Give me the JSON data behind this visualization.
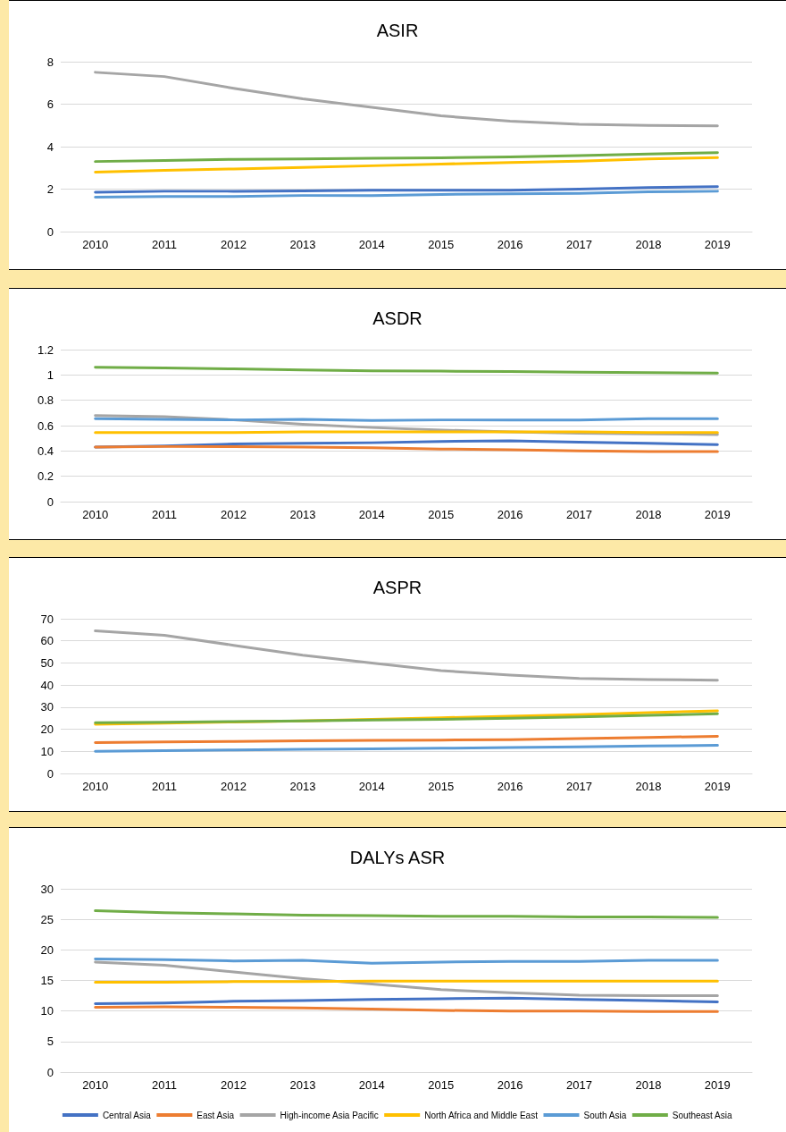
{
  "chart_data": [
    {
      "type": "line",
      "title": "ASIR",
      "categories": [
        "2010",
        "2011",
        "2012",
        "2013",
        "2014",
        "2015",
        "2016",
        "2017",
        "2018",
        "2019"
      ],
      "ylim": [
        0,
        8
      ],
      "yticks": [
        0,
        2,
        4,
        6,
        8
      ],
      "grid": "y",
      "legend": false,
      "marker": "none",
      "line_style": "solid",
      "series": [
        {
          "color": "#4472c4",
          "values": [
            1.85,
            1.9,
            1.9,
            1.92,
            1.95,
            1.95,
            1.95,
            2.0,
            2.07,
            2.12
          ]
        },
        {
          "color": "#ed7d31",
          "values": [
            null,
            null,
            null,
            null,
            null,
            null,
            null,
            null,
            null,
            null
          ]
        },
        {
          "color": "#a5a5a5",
          "values": [
            7.5,
            7.3,
            6.75,
            6.25,
            5.85,
            5.45,
            5.2,
            5.05,
            5.0,
            4.98
          ]
        },
        {
          "color": "#ffc000",
          "values": [
            2.8,
            2.88,
            2.95,
            3.02,
            3.1,
            3.18,
            3.25,
            3.32,
            3.42,
            3.48
          ]
        },
        {
          "color": "#5b9bd5",
          "values": [
            1.62,
            1.65,
            1.65,
            1.7,
            1.7,
            1.75,
            1.78,
            1.8,
            1.87,
            1.9
          ]
        },
        {
          "color": "#70ad47",
          "values": [
            3.3,
            3.35,
            3.4,
            3.42,
            3.45,
            3.47,
            3.52,
            3.58,
            3.65,
            3.72
          ]
        }
      ]
    },
    {
      "type": "line",
      "title": "ASDR",
      "categories": [
        "2010",
        "2011",
        "2012",
        "2013",
        "2014",
        "2015",
        "2016",
        "2017",
        "2018",
        "2019"
      ],
      "ylim": [
        0,
        1.2
      ],
      "yticks": [
        0,
        0.2,
        0.4,
        0.6,
        0.8,
        1,
        1.2
      ],
      "grid": "y",
      "legend": false,
      "marker": "none",
      "line_style": "solid",
      "series": [
        {
          "color": "#4472c4",
          "values": [
            0.43,
            0.44,
            0.455,
            0.46,
            0.465,
            0.475,
            0.48,
            0.47,
            0.46,
            0.45
          ]
        },
        {
          "color": "#ed7d31",
          "values": [
            0.43,
            0.435,
            0.435,
            0.43,
            0.425,
            0.415,
            0.41,
            0.4,
            0.395,
            0.395
          ]
        },
        {
          "color": "#a5a5a5",
          "values": [
            0.68,
            0.67,
            0.645,
            0.61,
            0.585,
            0.565,
            0.55,
            0.54,
            0.535,
            0.53
          ]
        },
        {
          "color": "#ffc000",
          "values": [
            0.545,
            0.545,
            0.545,
            0.55,
            0.55,
            0.55,
            0.55,
            0.55,
            0.545,
            0.545
          ]
        },
        {
          "color": "#5b9bd5",
          "values": [
            0.655,
            0.65,
            0.645,
            0.65,
            0.64,
            0.645,
            0.645,
            0.645,
            0.655,
            0.655
          ]
        },
        {
          "color": "#70ad47",
          "values": [
            1.06,
            1.055,
            1.048,
            1.04,
            1.033,
            1.03,
            1.027,
            1.022,
            1.018,
            1.015
          ]
        }
      ]
    },
    {
      "type": "line",
      "title": "ASPR",
      "categories": [
        "2010",
        "2011",
        "2012",
        "2013",
        "2014",
        "2015",
        "2016",
        "2017",
        "2018",
        "2019"
      ],
      "ylim": [
        0,
        70
      ],
      "yticks": [
        0,
        10,
        20,
        30,
        40,
        50,
        60,
        70
      ],
      "grid": "y",
      "legend": false,
      "marker": "none",
      "line_style": "solid",
      "series": [
        {
          "color": "#4472c4",
          "values": [
            null,
            null,
            null,
            null,
            null,
            null,
            null,
            null,
            null,
            null
          ]
        },
        {
          "color": "#ed7d31",
          "values": [
            14,
            14.3,
            14.5,
            14.8,
            15,
            15.1,
            15.3,
            15.8,
            16.3,
            16.8
          ]
        },
        {
          "color": "#a5a5a5",
          "values": [
            64.5,
            62.5,
            58,
            53.5,
            50,
            46.5,
            44.5,
            43,
            42.5,
            42.2
          ]
        },
        {
          "color": "#ffc000",
          "values": [
            22.3,
            22.8,
            23.3,
            23.8,
            24.5,
            25.2,
            25.9,
            26.6,
            27.5,
            28.3
          ]
        },
        {
          "color": "#5b9bd5",
          "values": [
            10,
            10.3,
            10.6,
            10.9,
            11.1,
            11.4,
            11.7,
            12,
            12.4,
            12.7
          ]
        },
        {
          "color": "#70ad47",
          "values": [
            23,
            23.2,
            23.5,
            23.8,
            24.2,
            24.5,
            25,
            25.6,
            26.3,
            27
          ]
        }
      ]
    },
    {
      "type": "line",
      "title": "DALYs ASR",
      "categories": [
        "2010",
        "2011",
        "2012",
        "2013",
        "2014",
        "2015",
        "2016",
        "2017",
        "2018",
        "2019"
      ],
      "ylim": [
        0,
        30
      ],
      "yticks": [
        0,
        5,
        10,
        15,
        20,
        25,
        30
      ],
      "grid": "y",
      "legend": "bottom",
      "marker": "none",
      "line_style": "solid",
      "series": [
        {
          "name": "Central Asia",
          "color": "#4472c4",
          "values": [
            11.2,
            11.3,
            11.6,
            11.7,
            11.9,
            12.0,
            12.1,
            11.9,
            11.7,
            11.5
          ]
        },
        {
          "name": "East Asia",
          "color": "#ed7d31",
          "values": [
            10.6,
            10.7,
            10.6,
            10.5,
            10.3,
            10.1,
            10.0,
            10.0,
            9.9,
            9.9
          ]
        },
        {
          "name": "High-income Asia Pacific",
          "color": "#a5a5a5",
          "values": [
            18,
            17.5,
            16.4,
            15.3,
            14.4,
            13.5,
            13,
            12.6,
            12.5,
            12.5
          ]
        },
        {
          "name": "North Africa and Middle East",
          "color": "#ffc000",
          "values": [
            14.7,
            14.7,
            14.8,
            14.8,
            14.9,
            14.9,
            14.9,
            14.9,
            14.9,
            14.9
          ]
        },
        {
          "name": "South Asia",
          "color": "#5b9bd5",
          "values": [
            18.5,
            18.4,
            18.2,
            18.3,
            17.8,
            18.0,
            18.1,
            18.1,
            18.3,
            18.3
          ]
        },
        {
          "name": "Southeast Asia",
          "color": "#70ad47",
          "values": [
            26.4,
            26.1,
            25.9,
            25.7,
            25.6,
            25.5,
            25.5,
            25.4,
            25.4,
            25.3
          ]
        }
      ]
    }
  ]
}
